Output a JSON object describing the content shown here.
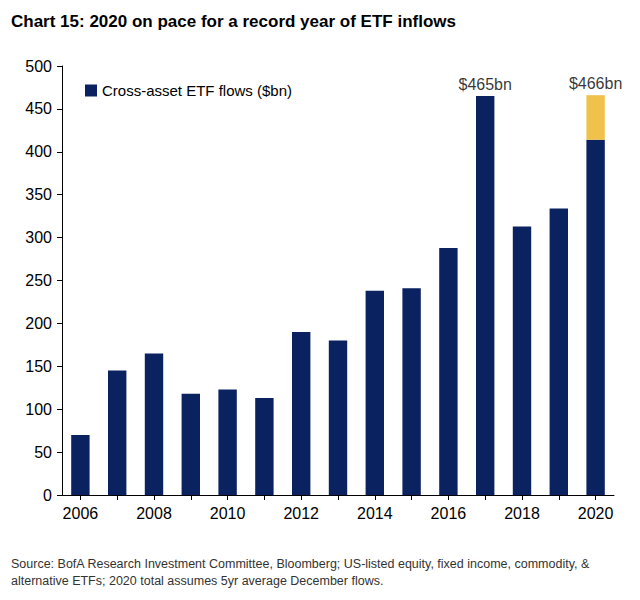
{
  "chart_data": {
    "type": "bar",
    "title": "Chart 15: 2020 on pace for a record year of ETF inflows",
    "source": "Source: BofA Research Investment Committee, Bloomberg; US-listed equity, fixed income, commodity, & alternative ETFs; 2020 total assumes 5yr average December flows.",
    "categories": [
      "2006",
      null,
      "2008",
      null,
      "2010",
      null,
      "2012",
      null,
      "2014",
      null,
      "2016",
      null,
      "2018",
      null,
      "2020"
    ],
    "series": [
      {
        "name": "Cross-asset ETF flows ($bn)",
        "color": "#0b2260",
        "values": [
          70,
          145,
          165,
          118,
          123,
          113,
          190,
          180,
          238,
          241,
          288,
          465,
          313,
          334,
          414
        ]
      },
      {
        "color": "#f0c24b",
        "values": [
          null,
          null,
          null,
          null,
          null,
          null,
          null,
          null,
          null,
          null,
          null,
          null,
          null,
          null,
          52
        ]
      }
    ],
    "annotations": [
      {
        "text": "$465bn",
        "index": 11,
        "value": 465
      },
      {
        "text": "$466bn",
        "index": 14,
        "value": 466
      }
    ],
    "stacked": true,
    "ylim": [
      0,
      500
    ],
    "yticks": [
      0,
      50,
      100,
      150,
      200,
      250,
      300,
      350,
      400,
      450,
      500
    ],
    "grid": false,
    "legend": "upper left"
  }
}
